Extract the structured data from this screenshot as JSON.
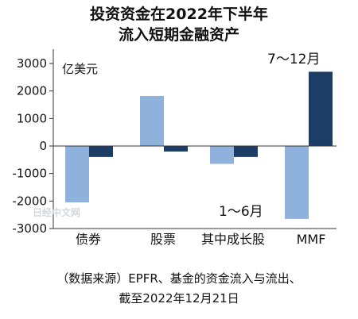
{
  "chart_data": {
    "type": "bar",
    "title_lines": [
      "投资资金在2022年下半年",
      "流入短期金融资产"
    ],
    "unit_label": "亿美元",
    "categories": [
      "债券",
      "股票",
      "其中成长股",
      "MMF"
    ],
    "series": [
      {
        "name": "1～6月",
        "color": "#8fb2dc",
        "values": [
          -2050,
          1820,
          -650,
          -2650
        ]
      },
      {
        "name": "7～12月",
        "color": "#1c3d66",
        "values": [
          -400,
          -200,
          -400,
          2700
        ]
      }
    ],
    "ylim": [
      -3000,
      3000
    ],
    "yticks": [
      3000,
      2000,
      1000,
      0,
      -1000,
      -2000,
      -3000
    ],
    "source_lines": [
      "（数据来源）EPFR、基金的资金流入与流出、",
      "截至2022年12月21日"
    ],
    "watermark": "日经中文网"
  }
}
